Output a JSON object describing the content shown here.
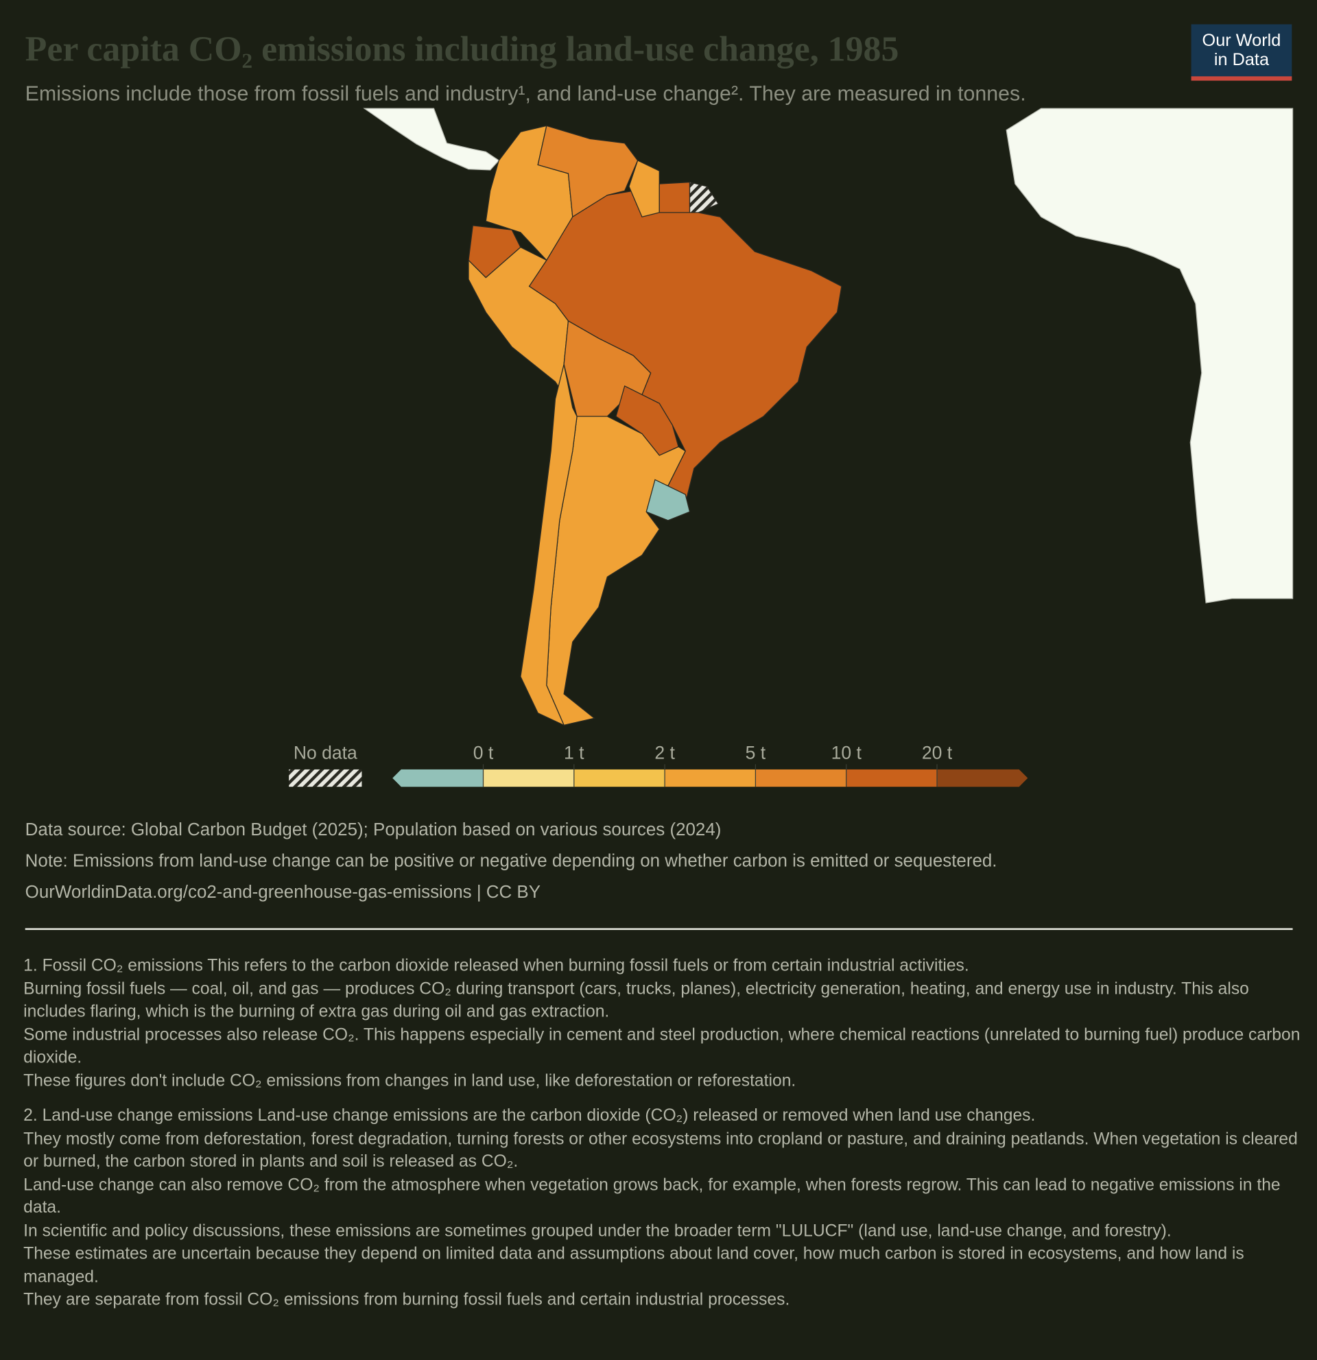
{
  "header": {
    "title": "Per capita CO₂ emissions including land-use change, 1985",
    "subtitle": "Emissions include those from fossil fuels and industry¹, and land-use change². They are measured in tonnes.",
    "logo": [
      "Our World",
      "in Data"
    ]
  },
  "legend": {
    "no_data_label": "No data",
    "no_data_color": "#e8e8e0",
    "ticks": [
      {
        "value": 0,
        "label": "0 t"
      },
      {
        "value": 1,
        "label": "1 t"
      },
      {
        "value": 2,
        "label": "2 t"
      },
      {
        "value": 5,
        "label": "5 t"
      },
      {
        "value": 10,
        "label": "10 t"
      },
      {
        "value": 20,
        "label": "20 t"
      }
    ],
    "colors": [
      "#92c1b8",
      "#f6df8c",
      "#f3c24c",
      "#f0a236",
      "#e3852a",
      "#c9611b",
      "#8f4515"
    ]
  },
  "footer": {
    "source": "Data source: Global Carbon Budget (2025); Population based on various sources (2024)",
    "note": "Note: Emissions from land-use change can be positive or negative depending on whether carbon is emitted or sequestered.",
    "url": "OurWorldinData.org/co2-and-greenhouse-gas-emissions | CC BY"
  },
  "footnotes": [
    [
      "1. Fossil CO₂ emissions This refers to the carbon dioxide released when burning fossil fuels or from certain industrial activities.",
      "Burning fossil fuels — coal, oil, and gas — produces CO₂ during transport (cars, trucks, planes), electricity generation, heating, and energy use in industry. This also includes flaring, which is the burning of extra gas during oil and gas extraction.",
      "Some industrial processes also release CO₂. This happens especially in cement and steel production, where chemical reactions (unrelated to burning fuel) produce carbon dioxide.",
      "These figures don't include CO₂ emissions from changes in land use, like deforestation or reforestation."
    ],
    [
      "2. Land-use change emissions Land-use change emissions are the carbon dioxide (CO₂) released or removed when land use changes.",
      "They mostly come from deforestation, forest degradation, turning forests or other ecosystems into cropland or pasture, and draining peatlands. When vegetation is cleared or burned, the carbon stored in plants and soil is released as CO₂.",
      "Land-use change can also remove CO₂ from the atmosphere when vegetation grows back, for example, when forests regrow. This can lead to negative emissions in the data.",
      "In scientific and policy discussions, these emissions are sometimes grouped under the broader term \"LULUCF\" (land use, land-use change, and forestry).",
      "These estimates are uncertain because they depend on limited data and assumptions about land cover, how much carbon is stored in ecosystems, and how land is managed.",
      "They are separate from fossil CO₂ emissions from burning fossil fuels and certain industrial processes."
    ]
  ]
}
